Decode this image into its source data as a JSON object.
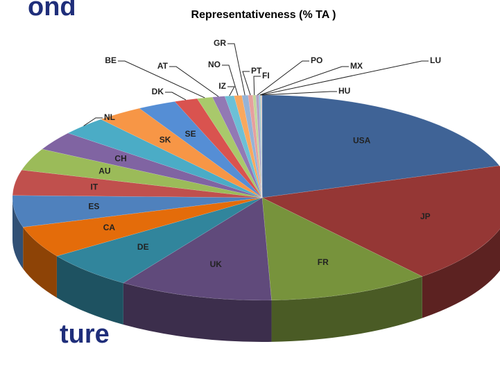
{
  "slide_fragments": [
    "ond",
    "ture"
  ],
  "chart_data": {
    "type": "pie3d",
    "title": "Representativeness (% TA )",
    "categories": [
      "USA",
      "JP",
      "FR",
      "UK",
      "DE",
      "CA",
      "ES",
      "IT",
      "AU",
      "CH",
      "NL",
      "SK",
      "SE",
      "DK",
      "BE",
      "AT",
      "IZ",
      "NO",
      "GR",
      "PT",
      "FI",
      "PO",
      "MX",
      "LU",
      "HU"
    ],
    "values": [
      20,
      19,
      10.5,
      10,
      6,
      5,
      5,
      4,
      3.5,
      3,
      3,
      3,
      2.5,
      1.5,
      1,
      0.8,
      0.6,
      0.5,
      0.4,
      0.3,
      0.2,
      0.2,
      0.1,
      0.05,
      0.05
    ],
    "colors": [
      "#3f6396",
      "#953735",
      "#77933c",
      "#604a7b",
      "#31859c",
      "#e46c0a",
      "#4f81bd",
      "#c0504d",
      "#9bbb59",
      "#8064a2",
      "#4bacc6",
      "#f79646",
      "#558ed5",
      "#d9534f",
      "#a9c96b",
      "#9279b4",
      "#6cc0d6",
      "#f9a85e",
      "#95b3d7",
      "#e6a09e",
      "#c3d69b",
      "#b3a2c7",
      "#93cddd",
      "#fac090",
      "#b9cde5"
    ]
  }
}
